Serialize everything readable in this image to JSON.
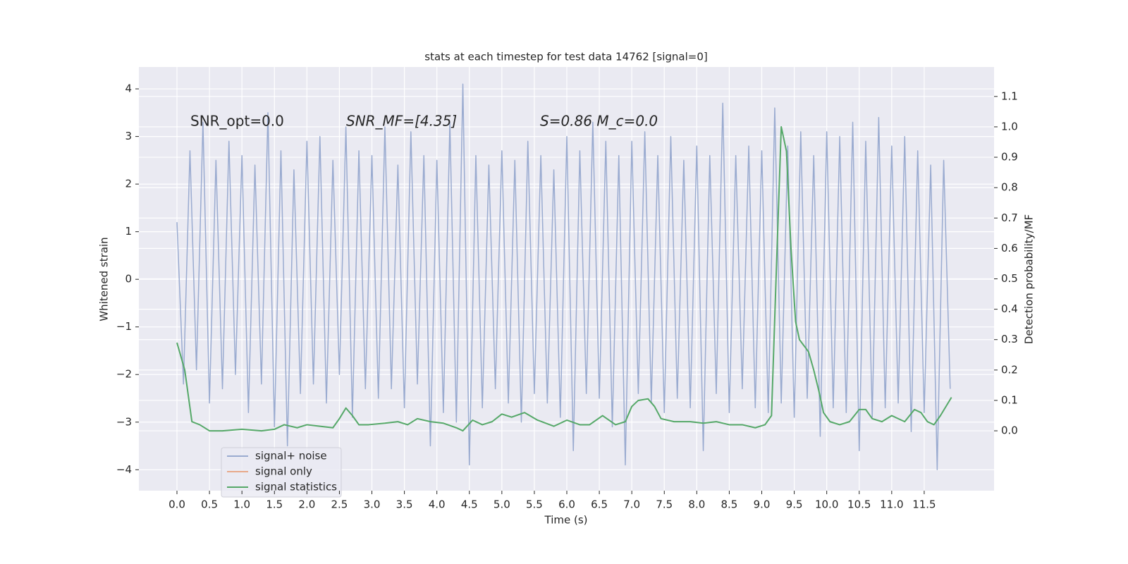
{
  "chart_data": {
    "type": "line",
    "title": "stats at each timestep for test data 14762 [signal=0]",
    "xlabel": "Time (s)",
    "ylabel": "Whitened strain",
    "y2label": "Detection probability/MF",
    "annotations": [
      "SNR_opt=0.0",
      "SNR_MF=[4.35]",
      "S=0.86   M_c=0.0"
    ],
    "xlim": [
      -0.586,
      12.575
    ],
    "ylim": [
      -4.44,
      4.46
    ],
    "y2lim": [
      -0.197,
      1.197
    ],
    "xticks": [
      {
        "value": 0,
        "label": "0.0"
      },
      0.5,
      {
        "value": 1,
        "label": "1.0"
      },
      1.5,
      {
        "value": 2,
        "label": "2.0"
      },
      2.5,
      {
        "value": 3,
        "label": "3.0"
      },
      3.5,
      {
        "value": 4,
        "label": "4.0"
      },
      4.5,
      {
        "value": 5,
        "label": "5.0"
      },
      5.5,
      {
        "value": 6,
        "label": "6.0"
      },
      6.5,
      {
        "value": 7,
        "label": "7.0"
      },
      7.5,
      {
        "value": 8,
        "label": "8.0"
      },
      8.5,
      {
        "value": 9,
        "label": "9.0"
      },
      9.5,
      {
        "value": 10,
        "label": "10.0"
      },
      10.5,
      {
        "value": 11,
        "label": "11.0"
      },
      11.5
    ],
    "yticks": [
      {
        "value": -4,
        "label": "−4"
      },
      {
        "value": -3,
        "label": "−3"
      },
      {
        "value": -2,
        "label": "−2"
      },
      {
        "value": -1,
        "label": "−1"
      },
      0,
      1,
      2,
      3,
      4
    ],
    "y2ticks": [
      {
        "value": 0,
        "label": "0.0"
      },
      0.1,
      0.2,
      0.3,
      0.4,
      0.5,
      0.6,
      0.7,
      0.8,
      0.9,
      {
        "value": 1,
        "label": "1.0"
      },
      1.1
    ],
    "grid": true,
    "legend": "lower left",
    "series": [
      {
        "name": "signal+ noise",
        "color": "#9aabd0",
        "x": [
          0,
          0.1,
          0.2,
          0.3,
          0.4,
          0.5,
          0.6,
          0.7,
          0.8,
          0.9,
          1,
          1.1,
          1.2,
          1.3,
          1.4,
          1.5,
          1.6,
          1.7,
          1.8,
          1.9,
          2,
          2.1,
          2.2,
          2.3,
          2.4,
          2.5,
          2.6,
          2.7,
          2.8,
          2.9,
          3,
          3.1,
          3.2,
          3.3,
          3.4,
          3.5,
          3.6,
          3.7,
          3.8,
          3.9,
          4,
          4.1,
          4.2,
          4.3,
          4.4,
          4.5,
          4.6,
          4.7,
          4.8,
          4.9,
          5,
          5.1,
          5.2,
          5.3,
          5.4,
          5.5,
          5.6,
          5.7,
          5.8,
          5.9,
          6,
          6.1,
          6.2,
          6.3,
          6.4,
          6.5,
          6.6,
          6.7,
          6.8,
          6.9,
          7,
          7.1,
          7.2,
          7.3,
          7.4,
          7.5,
          7.6,
          7.7,
          7.8,
          7.9,
          8,
          8.1,
          8.2,
          8.3,
          8.4,
          8.5,
          8.6,
          8.7,
          8.8,
          8.9,
          9,
          9.1,
          9.2,
          9.3,
          9.4,
          9.5,
          9.6,
          9.7,
          9.8,
          9.9,
          10,
          10.1,
          10.2,
          10.3,
          10.4,
          10.5,
          10.6,
          10.7,
          10.8,
          10.9,
          11,
          11.1,
          11.2,
          11.3,
          11.4,
          11.5,
          11.6,
          11.7,
          11.8,
          11.9
        ],
        "values": [
          1.2,
          -2.2,
          2.7,
          -1.9,
          3.3,
          -2.6,
          2.5,
          -2.3,
          2.9,
          -2.0,
          2.6,
          -2.8,
          2.4,
          -2.2,
          3.5,
          -3.1,
          2.7,
          -3.5,
          2.3,
          -2.4,
          2.9,
          -2.2,
          3.0,
          -2.6,
          2.5,
          -2.0,
          3.2,
          -2.9,
          2.7,
          -2.3,
          2.6,
          -2.5,
          3.2,
          -2.3,
          2.4,
          -2.7,
          3.1,
          -2.2,
          2.6,
          -3.5,
          2.5,
          -2.8,
          3.3,
          -3.0,
          4.1,
          -3.9,
          2.6,
          -2.7,
          2.4,
          -2.3,
          2.7,
          -2.6,
          2.5,
          -3.0,
          2.9,
          -2.4,
          2.6,
          -2.6,
          2.3,
          -2.9,
          3.0,
          -3.6,
          2.7,
          -2.4,
          3.3,
          -2.5,
          2.9,
          -3.1,
          2.6,
          -3.9,
          2.9,
          -2.4,
          3.1,
          -2.6,
          2.6,
          -2.8,
          3.0,
          -2.5,
          2.5,
          -2.7,
          2.8,
          -3.6,
          2.6,
          -2.4,
          3.7,
          -2.8,
          2.6,
          -2.3,
          2.8,
          -2.7,
          2.7,
          -2.8,
          3.6,
          -2.6,
          2.8,
          -2.9,
          3.1,
          -2.5,
          2.6,
          -3.3,
          3.1,
          -2.7,
          3.0,
          -2.8,
          3.3,
          -3.6,
          2.9,
          -2.9,
          3.4,
          -2.7,
          2.8,
          -2.6,
          3.0,
          -3.2,
          2.7,
          -2.8,
          2.4,
          -4.0,
          2.5,
          -2.3
        ]
      },
      {
        "name": "signal only",
        "color": "#e8a98a",
        "x": [],
        "values": []
      },
      {
        "name": "signal statistics",
        "color": "#55a868",
        "axis": "y2",
        "x": [
          0,
          0.12,
          0.23,
          0.35,
          0.5,
          0.7,
          1.0,
          1.3,
          1.5,
          1.65,
          1.85,
          2.0,
          2.2,
          2.4,
          2.5,
          2.6,
          2.7,
          2.8,
          2.95,
          3.2,
          3.4,
          3.55,
          3.7,
          3.9,
          4.1,
          4.3,
          4.4,
          4.55,
          4.7,
          4.85,
          5.0,
          5.15,
          5.35,
          5.55,
          5.8,
          6.0,
          6.2,
          6.35,
          6.55,
          6.75,
          6.9,
          7.0,
          7.1,
          7.25,
          7.35,
          7.45,
          7.65,
          7.9,
          8.1,
          8.3,
          8.5,
          8.7,
          8.9,
          9.05,
          9.15,
          9.22,
          9.3,
          9.38,
          9.45,
          9.52,
          9.58,
          9.65,
          9.72,
          9.8,
          9.88,
          9.95,
          10.05,
          10.2,
          10.35,
          10.5,
          10.6,
          10.7,
          10.85,
          11.0,
          11.2,
          11.35,
          11.45,
          11.55,
          11.65,
          11.75,
          11.92
        ],
        "values": [
          0.29,
          0.2,
          0.03,
          0.02,
          0.0,
          0.0,
          0.005,
          0.0,
          0.005,
          0.02,
          0.01,
          0.02,
          0.015,
          0.01,
          0.04,
          0.075,
          0.05,
          0.02,
          0.02,
          0.025,
          0.03,
          0.02,
          0.04,
          0.03,
          0.025,
          0.01,
          0.0,
          0.035,
          0.02,
          0.03,
          0.055,
          0.045,
          0.06,
          0.035,
          0.015,
          0.035,
          0.02,
          0.02,
          0.05,
          0.02,
          0.03,
          0.08,
          0.1,
          0.105,
          0.08,
          0.04,
          0.03,
          0.03,
          0.025,
          0.03,
          0.02,
          0.02,
          0.01,
          0.02,
          0.05,
          0.5,
          1.0,
          0.92,
          0.6,
          0.36,
          0.3,
          0.28,
          0.26,
          0.2,
          0.13,
          0.06,
          0.03,
          0.02,
          0.03,
          0.07,
          0.07,
          0.04,
          0.03,
          0.05,
          0.03,
          0.07,
          0.06,
          0.03,
          0.02,
          0.05,
          0.11
        ]
      }
    ]
  }
}
